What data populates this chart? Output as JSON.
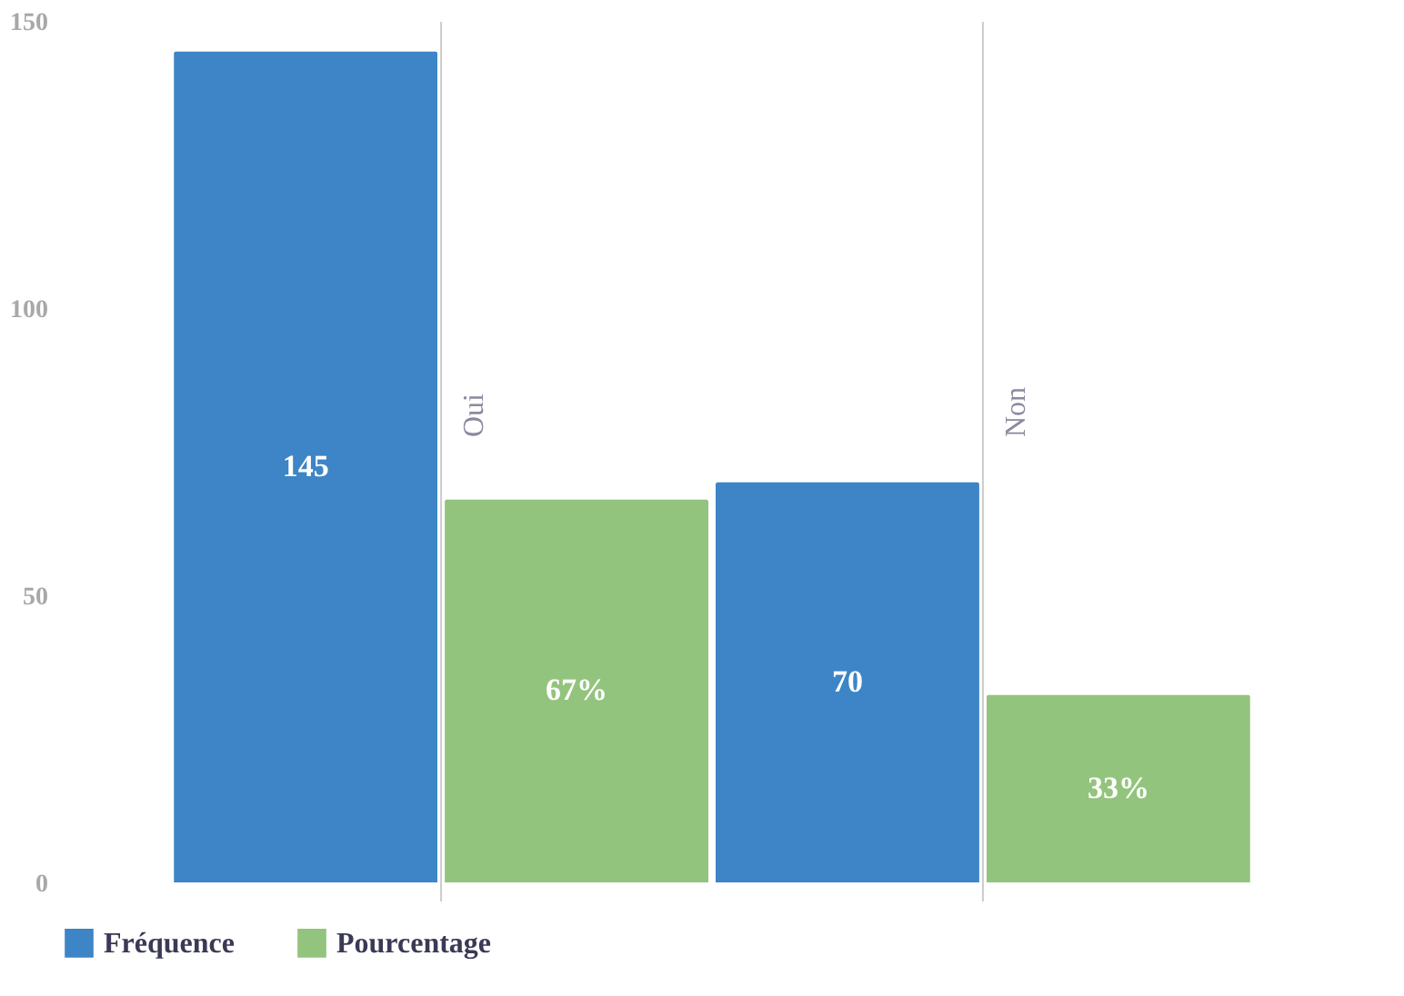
{
  "chart_data": {
    "type": "bar",
    "categories": [
      "Oui",
      "Non"
    ],
    "series": [
      {
        "name": "Fréquence",
        "color": "#3d85c6",
        "values": [
          145,
          70
        ],
        "value_labels": [
          "145",
          "70"
        ]
      },
      {
        "name": "Pourcentage",
        "color": "#93c47d",
        "values": [
          67,
          33
        ],
        "value_labels": [
          "67%",
          "33%"
        ]
      }
    ],
    "ylim": [
      0,
      150
    ],
    "yticks": [
      0,
      50,
      100,
      150
    ],
    "legend": "bottom",
    "ref_lines": [
      {
        "axis": "x",
        "value": "Oui",
        "color": "#cccccc"
      },
      {
        "axis": "x",
        "value": "Non",
        "color": "#cccccc"
      }
    ]
  }
}
